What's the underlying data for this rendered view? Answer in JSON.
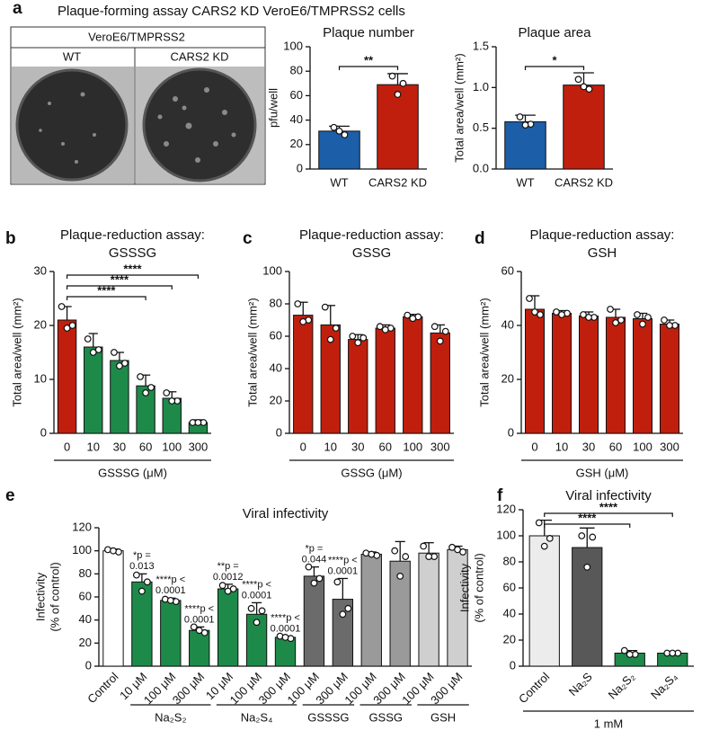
{
  "figure": {
    "letters": [
      "a",
      "b",
      "c",
      "d",
      "e",
      "f"
    ],
    "panel_a_title": "Plaque-forming assay CARS2 KD VeroE6/TMPRSS2 cells",
    "photo_header": "VeroE6/TMPRSS2",
    "photo_labels": [
      "WT",
      "CARS2 KD"
    ]
  },
  "chart_data": [
    {
      "type": "bar",
      "title": "Plaque number",
      "ylabel": "pfu/well",
      "categories": [
        "WT",
        "CARS2 KD"
      ],
      "values": [
        31,
        69
      ],
      "errors": [
        4,
        9
      ],
      "points": [
        [
          34,
          28,
          31
        ],
        [
          76,
          70,
          61
        ]
      ],
      "colors": [
        "#1c5ea8",
        "#c11f0e"
      ],
      "ylim": [
        0,
        100
      ],
      "yticks": [
        0,
        20,
        40,
        60,
        80,
        100
      ],
      "significance": [
        {
          "from": 0,
          "to": 1,
          "label": "**"
        }
      ]
    },
    {
      "type": "bar",
      "title": "Plaque area",
      "ylabel": "Total area/well (mm²)",
      "categories": [
        "WT",
        "CARS2 KD"
      ],
      "values": [
        0.58,
        1.03
      ],
      "errors": [
        0.08,
        0.15
      ],
      "points": [
        [
          0.64,
          0.55,
          0.54
        ],
        [
          1.1,
          0.98,
          1.01
        ]
      ],
      "colors": [
        "#1c5ea8",
        "#c11f0e"
      ],
      "ylim": [
        0,
        1.5
      ],
      "yticks": [
        {
          "value": 0,
          "label": "0.0"
        },
        0.5,
        {
          "value": 1,
          "label": "1.0"
        },
        1.5
      ],
      "significance": [
        {
          "from": 0,
          "to": 1,
          "label": "*"
        }
      ]
    },
    {
      "type": "bar",
      "title": "Plaque-reduction assay:",
      "subtitle": "GSSSG",
      "ylabel": "Total area/well (mm²)",
      "xlabel": "GSSSG (μM)",
      "categories": [
        "0",
        "10",
        "30",
        "60",
        "100",
        "300"
      ],
      "values": [
        21,
        16,
        13.5,
        8.8,
        6.5,
        2
      ],
      "errors": [
        2.5,
        2.5,
        1.5,
        2,
        1.2,
        0.5
      ],
      "points": [
        [
          23.5,
          20,
          19.5
        ],
        [
          17.5,
          15.5,
          15
        ],
        [
          15,
          13,
          12.5
        ],
        [
          10.5,
          8.5,
          7.5
        ],
        [
          7.5,
          6,
          6
        ],
        [
          2,
          2,
          2
        ]
      ],
      "colors": [
        "#c11f0e",
        "#1e8a4a",
        "#1e8a4a",
        "#1e8a4a",
        "#1e8a4a",
        "#1e8a4a"
      ],
      "ylim": [
        0,
        30
      ],
      "yticks": [
        0,
        10,
        20,
        30
      ],
      "significance": [
        {
          "from": 0,
          "to": 3,
          "label": "****"
        },
        {
          "from": 0,
          "to": 4,
          "label": "****"
        },
        {
          "from": 0,
          "to": 5,
          "label": "****"
        }
      ]
    },
    {
      "type": "bar",
      "title": "Plaque-reduction assay:",
      "subtitle": "GSSG",
      "ylabel": "Total area/well (mm²)",
      "xlabel": "GSSG (μM)",
      "categories": [
        "0",
        "10",
        "30",
        "60",
        "100",
        "300"
      ],
      "values": [
        73,
        67,
        58,
        65,
        72,
        62
      ],
      "errors": [
        8,
        12,
        3,
        2,
        1.5,
        5
      ],
      "points": [
        [
          80,
          70,
          69
        ],
        [
          78,
          65,
          58
        ],
        [
          60,
          59,
          56
        ],
        [
          66,
          65,
          64
        ],
        [
          73,
          72,
          71
        ],
        [
          66,
          63,
          57
        ]
      ],
      "colors": [
        "#c11f0e",
        "#c11f0e",
        "#c11f0e",
        "#c11f0e",
        "#c11f0e",
        "#c11f0e"
      ],
      "ylim": [
        0,
        100
      ],
      "yticks": [
        0,
        20,
        40,
        60,
        80,
        100
      ]
    },
    {
      "type": "bar",
      "title": "Plaque-reduction assay:",
      "subtitle": "GSH",
      "ylabel": "Total area/well (mm²)",
      "xlabel": "GSH (μM)",
      "categories": [
        "0",
        "10",
        "30",
        "60",
        "100",
        "300"
      ],
      "values": [
        46,
        44.5,
        43.5,
        43,
        42.5,
        40.5
      ],
      "errors": [
        5,
        1,
        1.5,
        3,
        2,
        1.5
      ],
      "points": [
        [
          50,
          44,
          45
        ],
        [
          45,
          44.5,
          44
        ],
        [
          44,
          43,
          43
        ],
        [
          46,
          42,
          41
        ],
        [
          44,
          43,
          40.5
        ],
        [
          42,
          40,
          40
        ]
      ],
      "colors": [
        "#c11f0e",
        "#c11f0e",
        "#c11f0e",
        "#c11f0e",
        "#c11f0e",
        "#c11f0e"
      ],
      "ylim": [
        0,
        60
      ],
      "yticks": [
        0,
        20,
        40,
        60
      ]
    },
    {
      "type": "bar",
      "title": "Viral infectivity",
      "ylabel": [
        "Infectivity",
        "(% of control)"
      ],
      "categories": [
        "Control",
        "10 μM",
        "100 μM",
        "300 μM",
        "10 μM",
        "100 μM",
        "300 μM",
        "100 μM",
        "300 μM",
        "100 μM",
        "300 μM",
        "100 μM",
        "300 μM"
      ],
      "values": [
        100,
        73,
        57,
        31,
        67,
        45,
        25,
        78,
        58,
        97,
        91,
        98,
        101
      ],
      "errors": [
        1.5,
        7,
        2,
        3,
        4,
        10,
        1,
        8,
        18,
        2,
        17,
        9,
        3
      ],
      "points": [
        [
          101,
          99,
          100
        ],
        [
          79,
          73,
          65
        ],
        [
          58,
          56,
          57
        ],
        [
          34,
          29,
          31
        ],
        [
          70,
          67,
          65
        ],
        [
          50,
          48,
          38
        ],
        [
          26,
          24,
          25
        ],
        [
          86,
          76,
          72
        ],
        [
          73,
          50,
          45
        ],
        [
          98,
          96,
          97
        ],
        [
          100,
          95,
          78
        ],
        [
          104,
          95,
          95
        ],
        [
          103,
          99,
          101
        ]
      ],
      "colors": [
        "#ffffff",
        "#1e8a4a",
        "#1e8a4a",
        "#1e8a4a",
        "#1e8a4a",
        "#1e8a4a",
        "#1e8a4a",
        "#6b6b6b",
        "#6b6b6b",
        "#9a9a9a",
        "#9a9a9a",
        "#cfcfcf",
        "#cfcfcf"
      ],
      "ylim": [
        0,
        120
      ],
      "yticks": [
        0,
        20,
        40,
        60,
        80,
        100,
        120
      ],
      "annotations": [
        null,
        [
          "*p =",
          "0.013"
        ],
        [
          "****p <",
          "0.0001"
        ],
        [
          "****p <",
          "0.0001"
        ],
        [
          "**p =",
          "0.0012"
        ],
        [
          "****p <",
          "0.0001"
        ],
        [
          "****p <",
          "0.0001"
        ],
        [
          "*p =",
          "0.044"
        ],
        [
          "****p <",
          "0.0001"
        ],
        null,
        null,
        null,
        null
      ],
      "groups": [
        {
          "label": "Na₂S₂",
          "from": 1,
          "to": 3
        },
        {
          "label": "Na₂S₄",
          "from": 4,
          "to": 6
        },
        {
          "label": "GSSSG",
          "from": 7,
          "to": 8
        },
        {
          "label": "GSSG",
          "from": 9,
          "to": 10
        },
        {
          "label": "GSH",
          "from": 11,
          "to": 12
        }
      ]
    },
    {
      "type": "bar",
      "title": "Viral infectivity",
      "ylabel": [
        "Infectivity",
        "(% of control)"
      ],
      "xlabel": "1 mM",
      "categories": [
        "Control",
        "Na₂S",
        "Na₂S₂",
        "Na₂S₄"
      ],
      "values": [
        100,
        91,
        10,
        10
      ],
      "errors": [
        12,
        15,
        2,
        1
      ],
      "points": [
        [
          110,
          98,
          92
        ],
        [
          100,
          99,
          76
        ],
        [
          12,
          9,
          9
        ],
        [
          10,
          10,
          10
        ]
      ],
      "colors": [
        "#ececec",
        "#585858",
        "#1e8a4a",
        "#1e8a4a"
      ],
      "ylim": [
        0,
        120
      ],
      "yticks": [
        0,
        20,
        40,
        60,
        80,
        100,
        120
      ],
      "significance": [
        {
          "from": 0,
          "to": 2,
          "label": "****"
        },
        {
          "from": 0,
          "to": 3,
          "label": "****"
        }
      ]
    }
  ]
}
